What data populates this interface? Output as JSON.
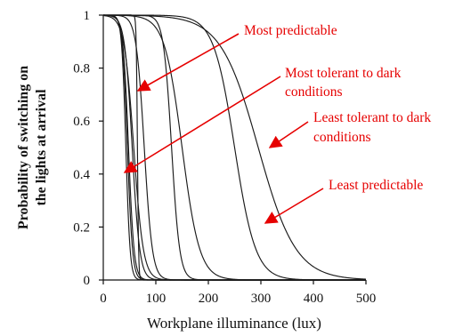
{
  "chart_data": {
    "type": "line",
    "title": "",
    "xlabel": "Workplane illuminance (lux)",
    "ylabel_lines": [
      "Probability of switching on",
      "the lights at arrival"
    ],
    "xlim": [
      0,
      500
    ],
    "ylim": [
      0,
      1
    ],
    "xticks": [
      0,
      100,
      200,
      300,
      400,
      500
    ],
    "yticks": [
      0,
      0.2,
      0.4,
      0.6,
      0.8,
      1
    ],
    "xtick_labels": [
      "0",
      "100",
      "200",
      "300",
      "400",
      "500"
    ],
    "ytick_labels": [
      "0",
      "0.2",
      "0.4",
      "0.6",
      "0.8",
      "1"
    ],
    "grid": false,
    "curve_color": "#1a1a1a",
    "series": [
      {
        "threshold_lux": 43,
        "slope": 0.25
      },
      {
        "threshold_lux": 46,
        "slope": 0.21
      },
      {
        "threshold_lux": 48,
        "slope": 0.19
      },
      {
        "threshold_lux": 55,
        "slope": 0.14
      },
      {
        "threshold_lux": 65,
        "slope": 0.9
      },
      {
        "threshold_lux": 58,
        "slope": 0.11
      },
      {
        "threshold_lux": 78,
        "slope": 0.13
      },
      {
        "threshold_lux": 130,
        "slope": 0.13
      },
      {
        "threshold_lux": 150,
        "slope": 0.06
      },
      {
        "threshold_lux": 250,
        "slope": 0.05
      },
      {
        "threshold_lux": 295,
        "slope": 0.028
      }
    ],
    "annotations": [
      {
        "lines": [
          "Most predictable"
        ],
        "color": "#e60000",
        "points_to": [
          65,
          0.72
        ]
      },
      {
        "lines": [
          "Most tolerant to dark",
          "conditions"
        ],
        "color": "#e60000",
        "points_to": [
          42,
          0.41
        ]
      },
      {
        "lines": [
          "Least tolerant to dark",
          "conditions"
        ],
        "color": "#e60000",
        "points_to": [
          315,
          0.5
        ]
      },
      {
        "lines": [
          "Least predictable"
        ],
        "color": "#e60000",
        "points_to": [
          305,
          0.21
        ]
      }
    ]
  }
}
